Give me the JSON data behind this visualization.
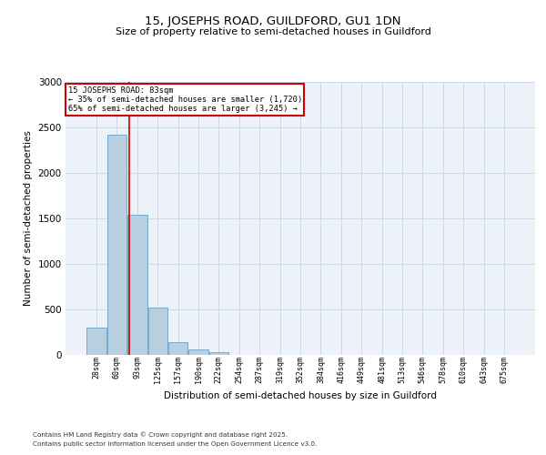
{
  "title1": "15, JOSEPHS ROAD, GUILDFORD, GU1 1DN",
  "title2": "Size of property relative to semi-detached houses in Guildford",
  "xlabel": "Distribution of semi-detached houses by size in Guildford",
  "ylabel": "Number of semi-detached properties",
  "bar_labels": [
    "28sqm",
    "60sqm",
    "93sqm",
    "125sqm",
    "157sqm",
    "190sqm",
    "222sqm",
    "254sqm",
    "287sqm",
    "319sqm",
    "352sqm",
    "384sqm",
    "416sqm",
    "449sqm",
    "481sqm",
    "513sqm",
    "546sqm",
    "578sqm",
    "610sqm",
    "643sqm",
    "675sqm"
  ],
  "bar_values": [
    300,
    2420,
    1545,
    520,
    145,
    65,
    30,
    0,
    0,
    0,
    0,
    0,
    0,
    0,
    0,
    0,
    0,
    0,
    0,
    0,
    0
  ],
  "property_line_x": 1.62,
  "annotation_title": "15 JOSEPHS ROAD: 83sqm",
  "annotation_line1": "← 35% of semi-detached houses are smaller (1,720)",
  "annotation_line2": "65% of semi-detached houses are larger (3,245) →",
  "bar_color": "#b8cfe0",
  "bar_edge_color": "#6aa0c8",
  "vline_color": "#cc0000",
  "annotation_box_color": "#cc0000",
  "grid_color": "#cdd8e8",
  "bg_color": "#edf2f8",
  "ylim": [
    0,
    3000
  ],
  "yticks": [
    0,
    500,
    1000,
    1500,
    2000,
    2500,
    3000
  ],
  "footnote1": "Contains HM Land Registry data © Crown copyright and database right 2025.",
  "footnote2": "Contains public sector information licensed under the Open Government Licence v3.0."
}
